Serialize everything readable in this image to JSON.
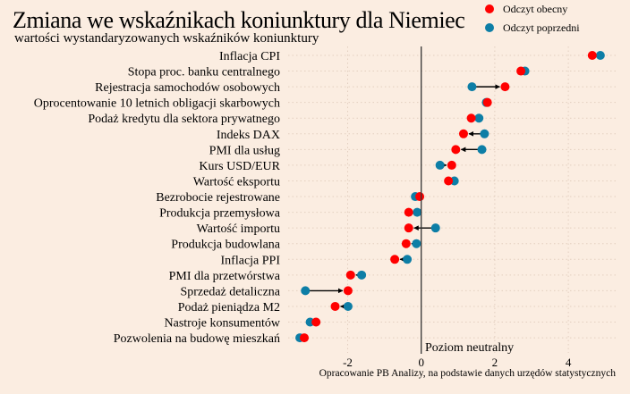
{
  "chart_data": {
    "type": "dumbbell",
    "title": "Zmiana we wskaźnikach koniunktury dla Niemiec",
    "subtitle": "wartości wystandaryzowanych wskaźników koniunktury",
    "caption": "Opracowanie PB Analizy, na podstawie danych urzędów statystycznych",
    "annotation": "Poziom neutralny",
    "xlim": [
      -3.4,
      5.3
    ],
    "xticks": [
      -2,
      0,
      2,
      4
    ],
    "xtick_labels": [
      "-2",
      "0",
      "2",
      "4"
    ],
    "grid": true,
    "legend_placement": "top-right",
    "series": [
      {
        "name": "Odczyt obecny",
        "color": "#ff0000"
      },
      {
        "name": "Odczyt poprzedni",
        "color": "#0d7ea6"
      }
    ],
    "categories": [
      "Inflacja CPI",
      "Stopa proc. banku centralnego",
      "Rejestracja samochodów osobowych",
      "Oprocentowanie 10 letnich obligacji skarbowych",
      "Podaż kredytu dla sektora prywatnego",
      "Indeks DAX",
      "PMI dla usług",
      "Kurs USD/EUR",
      "Wartość eksportu",
      "Bezrobocie rejestrowane",
      "Produkcja przemysłowa",
      "Wartość importu",
      "Produkcja budowlana",
      "Inflacja PPI",
      "PMI dla przetwórstwa",
      "Sprzedaż detaliczna",
      "Podaż pieniądza M2",
      "Nastroje konsumentów",
      "Pozwolenia na budowę mieszkań"
    ],
    "current": [
      4.65,
      2.71,
      2.28,
      1.8,
      1.36,
      1.15,
      0.94,
      0.83,
      0.74,
      -0.04,
      -0.34,
      -0.34,
      -0.41,
      -0.72,
      -1.92,
      -1.99,
      -2.34,
      -2.86,
      -3.18
    ],
    "previous": [
      4.87,
      2.82,
      1.38,
      1.77,
      1.57,
      1.72,
      1.65,
      0.51,
      0.9,
      -0.16,
      -0.11,
      0.39,
      -0.13,
      -0.38,
      -1.62,
      -3.15,
      -1.99,
      -3.02,
      -3.3
    ]
  }
}
